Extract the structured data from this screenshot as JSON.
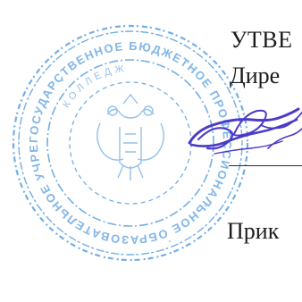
{
  "document": {
    "approval_heading": "УТВЕ",
    "position_title": "Дире",
    "order_reference": "Прик"
  },
  "stamp": {
    "emblem": "double-headed-eagle-coat-of-arms",
    "ring_text": "ГОСУДАРСТВЕННОЕ БЮДЖЕТНОЕ ПРОФЕССИОНАЛЬНОЕ ОБРАЗОВАТЕЛЬНОЕ УЧРЕЖДЕНИЕ",
    "center_text": "КОЛЛЕДЖ",
    "ink_color": "#3f8fd6"
  },
  "signature": {
    "ink_color": "#4a3ac7"
  }
}
